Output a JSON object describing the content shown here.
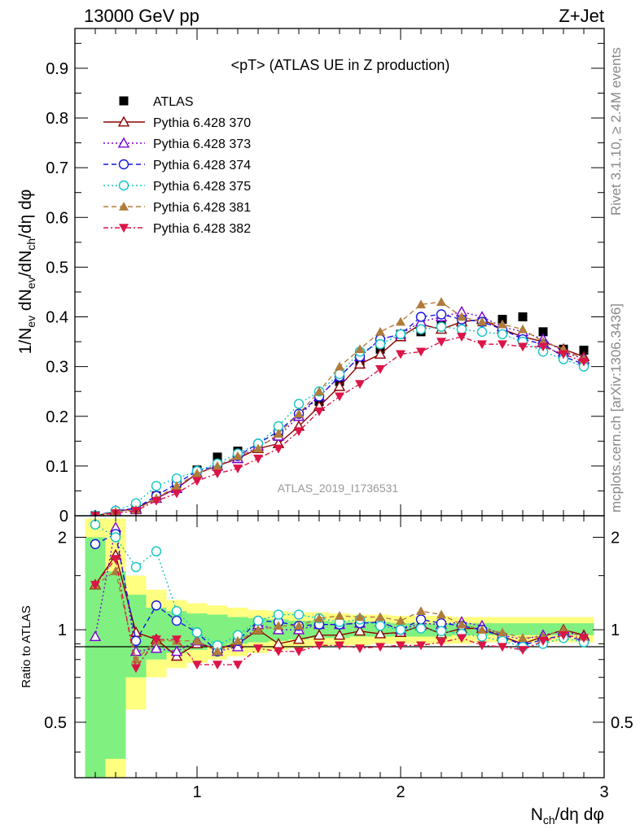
{
  "header": {
    "left": "13000 GeV pp",
    "right": "Z+Jet"
  },
  "side_labels": {
    "rivet": "Rivet 3.1.10, ≥ 2.4M events",
    "mcplots": "mcplots.cern.ch [arXiv:1306.3436]"
  },
  "main_panel": {
    "title": "<pT> (ATLAS UE in Z production)",
    "analysis_id": "ATLAS_2019_I1736531",
    "ylabel": "1/N_ev dN_ev/dN_ch/dη dφ"
  },
  "ratio_panel": {
    "ylabel": "Ratio to ATLAS"
  },
  "xaxis": {
    "label": "N_ch/dη dφ",
    "ticks": [
      "1",
      "2",
      "3"
    ]
  },
  "chart_data": [
    {
      "type": "scatter",
      "panel": "main",
      "xlim": [
        0.4,
        3.0
      ],
      "ylim": [
        0,
        0.98
      ],
      "yticks": [
        "0",
        "0.1",
        "0.2",
        "0.3",
        "0.4",
        "0.5",
        "0.6",
        "0.7",
        "0.8",
        "0.9"
      ],
      "legend": "top-left",
      "x": [
        0.5,
        0.6,
        0.7,
        0.8,
        0.9,
        1.0,
        1.1,
        1.2,
        1.3,
        1.4,
        1.5,
        1.6,
        1.7,
        1.8,
        1.9,
        2.0,
        2.1,
        2.2,
        2.3,
        2.4,
        2.5,
        2.6,
        2.7,
        2.8,
        2.9
      ],
      "series": [
        {
          "name": "ATLAS",
          "marker": "square",
          "color": "#000000",
          "values": [
            0.0,
            0.005,
            0.015,
            0.04,
            0.065,
            0.092,
            0.118,
            0.13,
            0.135,
            0.16,
            0.2,
            0.23,
            0.27,
            0.305,
            0.335,
            0.365,
            0.37,
            0.385,
            0.385,
            0.39,
            0.395,
            0.4,
            0.37,
            0.335,
            0.333
          ]
        },
        {
          "name": "Pythia 6.428 370",
          "marker": "triangle-open",
          "color": "#8b0000",
          "dash": "",
          "values": [
            0.0,
            0.008,
            0.015,
            0.035,
            0.055,
            0.085,
            0.1,
            0.115,
            0.135,
            0.145,
            0.18,
            0.22,
            0.26,
            0.305,
            0.325,
            0.36,
            0.385,
            0.375,
            0.39,
            0.395,
            0.375,
            0.36,
            0.35,
            0.335,
            0.32
          ]
        },
        {
          "name": "Pythia 6.428 373",
          "marker": "triangle-open",
          "color": "#7b00d4",
          "dash": "2,3",
          "values": [
            0.0,
            0.01,
            0.012,
            0.035,
            0.055,
            0.085,
            0.1,
            0.115,
            0.14,
            0.16,
            0.2,
            0.24,
            0.28,
            0.32,
            0.355,
            0.365,
            0.39,
            0.4,
            0.41,
            0.4,
            0.38,
            0.37,
            0.355,
            0.33,
            0.315
          ]
        },
        {
          "name": "Pythia 6.428 374",
          "marker": "circle-open",
          "color": "#1515e0",
          "dash": "6,4",
          "values": [
            0.0,
            0.01,
            0.015,
            0.04,
            0.065,
            0.09,
            0.1,
            0.12,
            0.145,
            0.17,
            0.205,
            0.24,
            0.28,
            0.32,
            0.355,
            0.365,
            0.4,
            0.405,
            0.395,
            0.39,
            0.375,
            0.355,
            0.345,
            0.32,
            0.305
          ]
        },
        {
          "name": "Pythia 6.428 375",
          "marker": "circle-open",
          "color": "#12c4c4",
          "dash": "2,3",
          "values": [
            0.0,
            0.01,
            0.025,
            0.06,
            0.075,
            0.09,
            0.105,
            0.125,
            0.145,
            0.18,
            0.225,
            0.25,
            0.285,
            0.33,
            0.345,
            0.365,
            0.375,
            0.38,
            0.375,
            0.37,
            0.365,
            0.35,
            0.33,
            0.315,
            0.3
          ]
        },
        {
          "name": "Pythia 6.428 381",
          "marker": "triangle-up",
          "color": "#b07c3c",
          "dash": "6,4",
          "values": [
            0.0,
            0.008,
            0.012,
            0.035,
            0.06,
            0.085,
            0.1,
            0.12,
            0.135,
            0.165,
            0.205,
            0.25,
            0.3,
            0.335,
            0.37,
            0.39,
            0.425,
            0.43,
            0.4,
            0.39,
            0.385,
            0.375,
            0.35,
            0.335,
            0.315
          ]
        },
        {
          "name": "Pythia 6.428 382",
          "marker": "triangle-down",
          "color": "#dc1448",
          "dash": "6,3,2,3",
          "values": [
            0.0,
            0.005,
            0.01,
            0.03,
            0.045,
            0.07,
            0.085,
            0.095,
            0.115,
            0.135,
            0.17,
            0.21,
            0.24,
            0.265,
            0.295,
            0.325,
            0.33,
            0.35,
            0.36,
            0.345,
            0.345,
            0.34,
            0.34,
            0.325,
            0.31
          ]
        }
      ]
    },
    {
      "type": "line",
      "panel": "ratio",
      "xlim": [
        0.4,
        3.0
      ],
      "ylim": [
        0.33,
        2.35
      ],
      "ylog": true,
      "yticks": [
        "0.5",
        "1",
        "2"
      ],
      "bands": {
        "x": [
          0.45,
          0.55,
          0.65,
          0.75,
          0.85,
          0.95,
          1.05,
          1.15,
          1.25,
          1.35,
          1.45,
          1.55,
          1.65,
          1.75,
          1.85,
          1.95,
          2.05,
          2.15,
          2.25,
          2.35,
          2.45,
          2.55,
          2.65,
          2.75,
          2.85,
          2.95
        ],
        "yellow_low": [
          0.3,
          0.3,
          0.55,
          0.7,
          0.75,
          0.78,
          0.8,
          0.82,
          0.84,
          0.86,
          0.87,
          0.88,
          0.89,
          0.89,
          0.9,
          0.9,
          0.9,
          0.9,
          0.9,
          0.91,
          0.91,
          0.91,
          0.91,
          0.91,
          0.91
        ],
        "yellow_high": [
          2.3,
          2.3,
          1.5,
          1.35,
          1.25,
          1.22,
          1.2,
          1.18,
          1.16,
          1.15,
          1.14,
          1.14,
          1.13,
          1.12,
          1.12,
          1.11,
          1.11,
          1.11,
          1.1,
          1.1,
          1.1,
          1.1,
          1.1,
          1.1,
          1.1
        ],
        "green_low": [
          0.3,
          0.38,
          0.7,
          0.8,
          0.84,
          0.86,
          0.88,
          0.9,
          0.91,
          0.92,
          0.93,
          0.94,
          0.94,
          0.95,
          0.95,
          0.95,
          0.95,
          0.95,
          0.96,
          0.96,
          0.96,
          0.96,
          0.96,
          0.96,
          0.96
        ],
        "green_high": [
          2.0,
          1.55,
          1.3,
          1.18,
          1.15,
          1.13,
          1.12,
          1.1,
          1.09,
          1.08,
          1.07,
          1.07,
          1.06,
          1.06,
          1.06,
          1.05,
          1.05,
          1.05,
          1.05,
          1.05,
          1.05,
          1.05,
          1.05,
          1.05,
          1.05
        ]
      },
      "x": [
        0.5,
        0.6,
        0.7,
        0.8,
        0.9,
        1.0,
        1.1,
        1.2,
        1.3,
        1.4,
        1.5,
        1.6,
        1.7,
        1.8,
        1.9,
        2.0,
        2.1,
        2.2,
        2.3,
        2.4,
        2.5,
        2.6,
        2.7,
        2.8,
        2.9
      ],
      "series": [
        {
          "name": "Pythia 6.428 370",
          "values": [
            1.4,
            1.75,
            0.98,
            0.93,
            0.82,
            0.9,
            0.87,
            0.9,
            1.0,
            0.9,
            0.93,
            0.96,
            0.96,
            0.99,
            0.97,
            0.98,
            1.03,
            0.97,
            1.01,
            1.01,
            0.95,
            0.9,
            0.95,
            1.0,
            0.96
          ]
        },
        {
          "name": "Pythia 6.428 373",
          "values": [
            0.95,
            2.15,
            0.85,
            0.87,
            0.85,
            0.92,
            0.85,
            0.88,
            1.04,
            1.0,
            1.0,
            1.04,
            1.04,
            1.05,
            1.06,
            1.0,
            1.05,
            1.04,
            1.06,
            1.03,
            0.96,
            0.93,
            0.96,
            0.99,
            0.95
          ]
        },
        {
          "name": "Pythia 6.428 374",
          "values": [
            1.9,
            2.05,
            0.92,
            1.2,
            1.07,
            0.98,
            0.85,
            0.92,
            1.07,
            1.06,
            1.03,
            1.04,
            1.04,
            1.05,
            1.06,
            1.0,
            1.08,
            1.05,
            1.03,
            1.0,
            0.95,
            0.89,
            0.93,
            0.96,
            0.92
          ]
        },
        {
          "name": "Pythia 6.428 375",
          "values": [
            2.2,
            2.0,
            1.6,
            1.8,
            1.15,
            0.98,
            0.89,
            0.96,
            1.07,
            1.12,
            1.12,
            1.09,
            1.06,
            1.08,
            1.03,
            1.0,
            1.01,
            0.99,
            0.97,
            0.95,
            0.92,
            0.88,
            0.9,
            0.94,
            0.91
          ]
        },
        {
          "name": "Pythia 6.428 381",
          "values": [
            1.4,
            1.55,
            0.8,
            0.92,
            0.92,
            0.92,
            0.85,
            0.92,
            1.0,
            1.03,
            1.03,
            1.09,
            1.11,
            1.1,
            1.1,
            1.07,
            1.15,
            1.12,
            1.04,
            1.0,
            0.98,
            0.94,
            0.95,
            1.0,
            0.95
          ]
        },
        {
          "name": "Pythia 6.428 382",
          "values": [
            1.4,
            1.7,
            0.75,
            0.93,
            0.93,
            0.77,
            0.77,
            0.77,
            0.87,
            0.85,
            0.85,
            0.89,
            0.89,
            0.87,
            0.88,
            0.89,
            0.89,
            0.91,
            0.94,
            0.89,
            0.88,
            0.86,
            0.92,
            0.96,
            0.94
          ]
        }
      ]
    }
  ]
}
